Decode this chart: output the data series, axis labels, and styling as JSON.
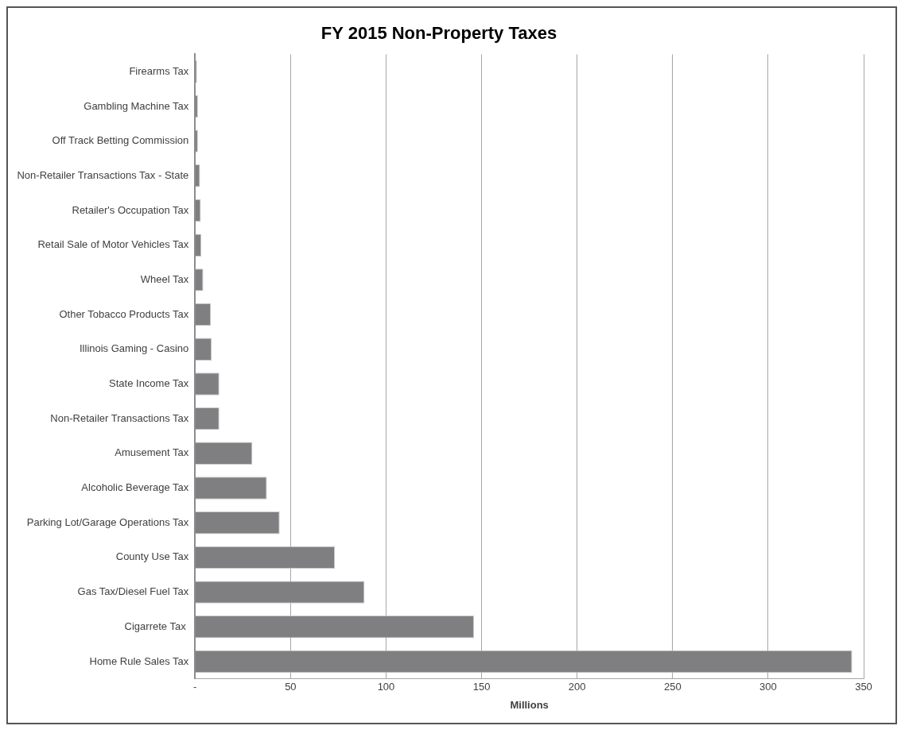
{
  "chart_data": {
    "type": "bar",
    "orientation": "horizontal",
    "title": "FY 2015 Non-Property Taxes",
    "xlabel": "Millions",
    "categories": [
      "Firearms Tax",
      "Gambling Machine Tax",
      "Off Track Betting Commission",
      "Non-Retailer Transactions Tax - State",
      "Retailer's Occupation Tax",
      "Retail Sale of Motor Vehicles Tax",
      "Wheel Tax",
      "Other Tobacco Products Tax",
      "Illinois Gaming - Casino",
      "State Income Tax",
      "Non-Retailer Transactions Tax",
      "Amusement Tax",
      "Alcoholic Beverage Tax",
      "Parking Lot/Garage Operations Tax",
      "County Use Tax",
      "Gas Tax/Diesel Fuel Tax",
      "Cigarrete Tax ",
      "Home Rule Sales Tax"
    ],
    "values": [
      1.0,
      1.5,
      1.5,
      2.6,
      3.0,
      3.3,
      4.3,
      8.3,
      8.7,
      12.7,
      12.7,
      30,
      37.6,
      44.3,
      73.2,
      88.7,
      146,
      344
    ],
    "color": "#7f7f82",
    "xlim": [
      0,
      350
    ],
    "xticks": [
      {
        "value": 0,
        "label": "-"
      },
      50,
      100,
      150,
      200,
      250,
      300,
      350
    ],
    "grid": "x",
    "legend": false
  }
}
